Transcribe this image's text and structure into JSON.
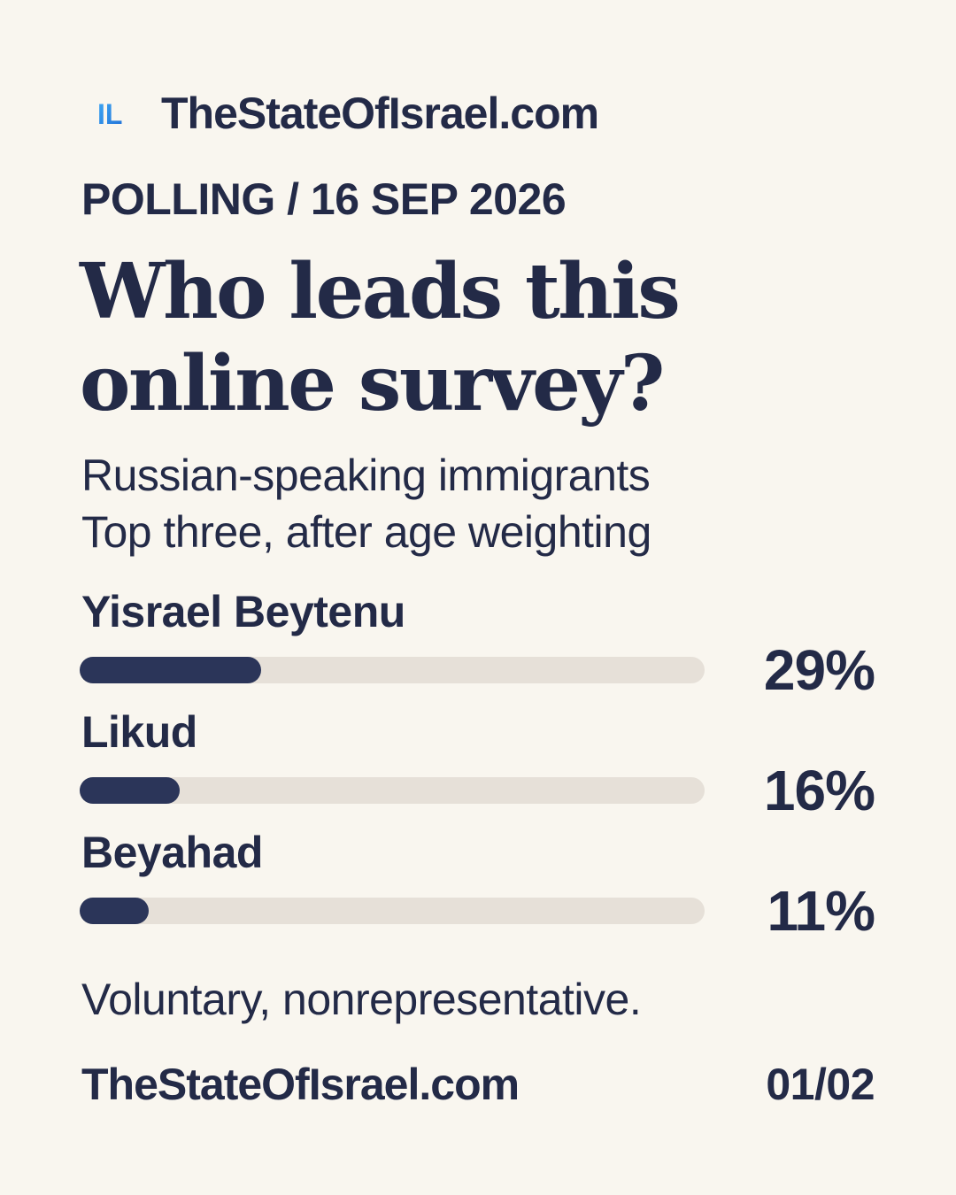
{
  "brand": {
    "logo_icon": "il-logo-icon",
    "logo_text": "IL",
    "name": "TheStateOfIsrael.com"
  },
  "kicker": "POLLING / 16 SEP 2026",
  "headline": "Who leads this online survey?",
  "subtitle": {
    "line1": "Russian-speaking immigrants",
    "line2": "Top three, after age weighting"
  },
  "colors": {
    "background": "#f9f6ef",
    "text": "#232a47",
    "bar_fill": "#2b3559",
    "bar_track": "#e6e0d8",
    "logo_blue": "#2f8fe8"
  },
  "chart_data": {
    "type": "bar",
    "orientation": "horizontal",
    "categories": [
      "Yisrael Beytenu",
      "Likud",
      "Beyahad"
    ],
    "values": [
      29,
      16,
      11
    ],
    "value_labels": [
      "29%",
      "16%",
      "11%"
    ],
    "unit": "%",
    "xlim": [
      0,
      100
    ],
    "grid": false,
    "legend": "none"
  },
  "note": "Voluntary, nonrepresentative.",
  "footer": {
    "site": "TheStateOfIsrael.com",
    "page": "01/02"
  }
}
